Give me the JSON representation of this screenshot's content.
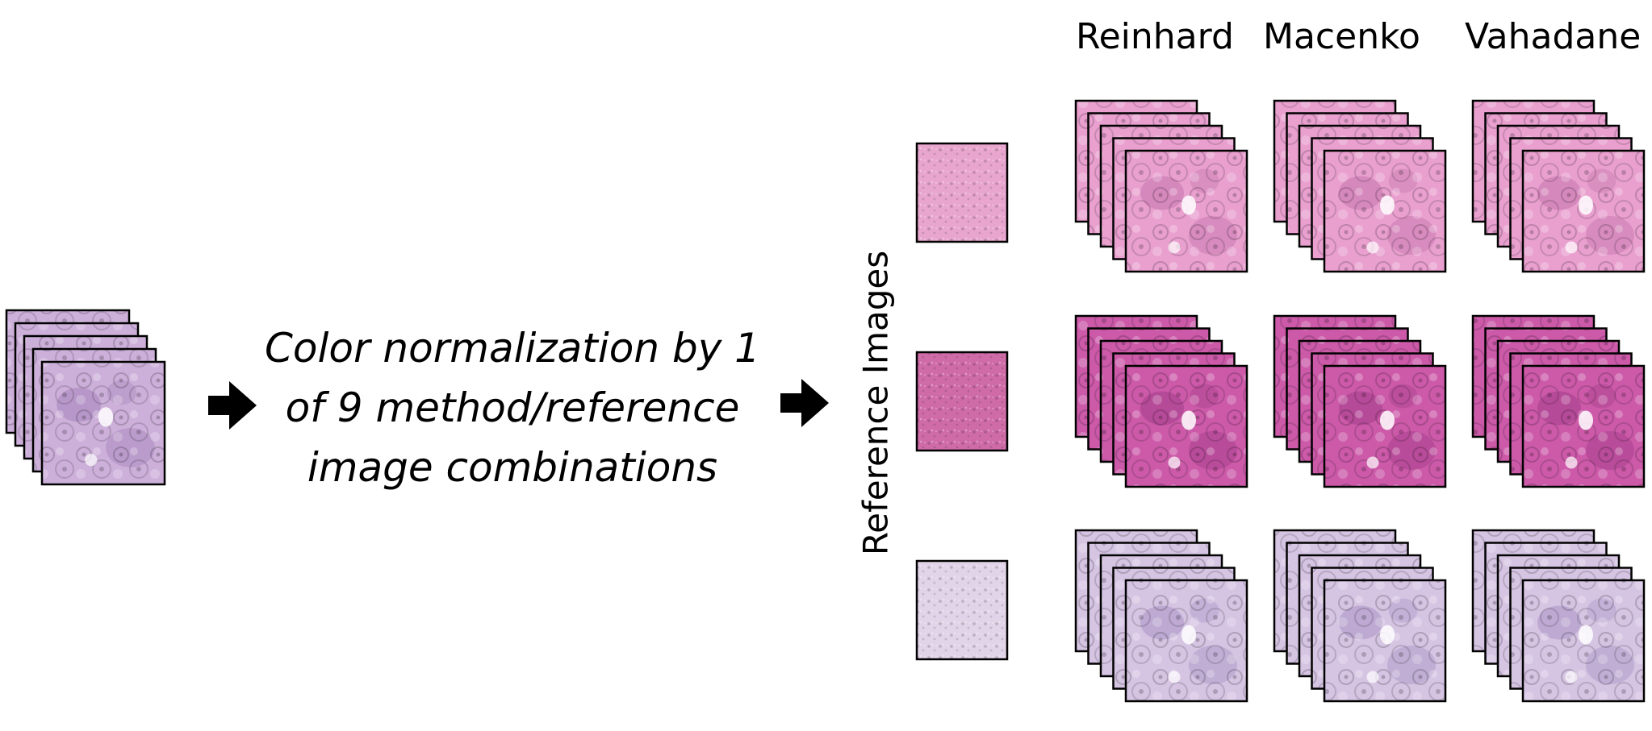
{
  "caption_lines": [
    "Color normalization by 1",
    "of 9 method/reference",
    "image combinations"
  ],
  "methods": [
    "Reinhard",
    "Macenko",
    "Vahadane"
  ],
  "reference_axis_label": "Reference Images",
  "colors": {
    "input_tissue": "#cdb0da",
    "input_tissue_dark": "#8f6aa8",
    "reference_1": "#e8a6cf",
    "reference_2": "#cf6ca8",
    "reference_3": "#e2d4e8",
    "row_1_tissue": "#e9a0cf",
    "row_1_tissue_dark": "#b15d98",
    "row_2_tissue": "#cc5aa9",
    "row_2_tissue_dark": "#8a2f78",
    "row_3_tissue": "#d6c4e3",
    "row_3_tissue_dark": "#8f79b3",
    "arrow": "#000000",
    "frame": "#000000"
  }
}
